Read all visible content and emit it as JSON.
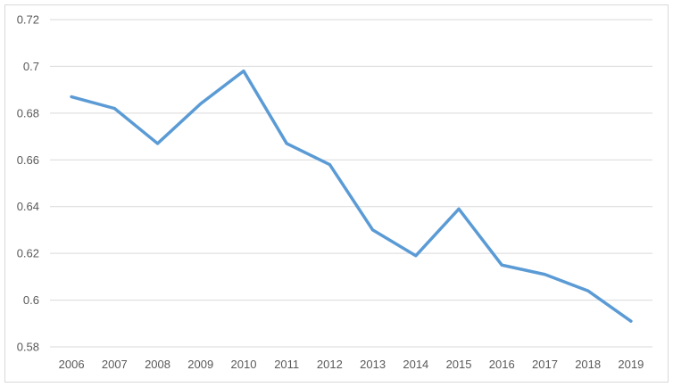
{
  "chart_data": {
    "type": "line",
    "title": "",
    "xlabel": "",
    "ylabel": "",
    "categories": [
      "2006",
      "2007",
      "2008",
      "2009",
      "2010",
      "2011",
      "2012",
      "2013",
      "2014",
      "2015",
      "2016",
      "2017",
      "2018",
      "2019"
    ],
    "series": [
      {
        "values": [
          0.687,
          0.682,
          0.667,
          0.684,
          0.698,
          0.667,
          0.658,
          0.63,
          0.619,
          0.639,
          0.615,
          0.611,
          0.604,
          0.591
        ],
        "color": "#5b9bd5"
      }
    ],
    "ylim": [
      0.58,
      0.72
    ],
    "yticks": [
      0.58,
      0.6,
      0.62,
      0.64,
      0.66,
      0.68,
      0.7,
      0.72
    ],
    "ytick_labels": [
      "0.58",
      "0.6",
      "0.62",
      "0.64",
      "0.66",
      "0.68",
      "0.7",
      "0.72"
    ],
    "grid": true,
    "legend": "none",
    "colors": {
      "gridline": "#d9d9d9",
      "tick_text": "#595959",
      "frame": "#d9d9d9"
    }
  }
}
